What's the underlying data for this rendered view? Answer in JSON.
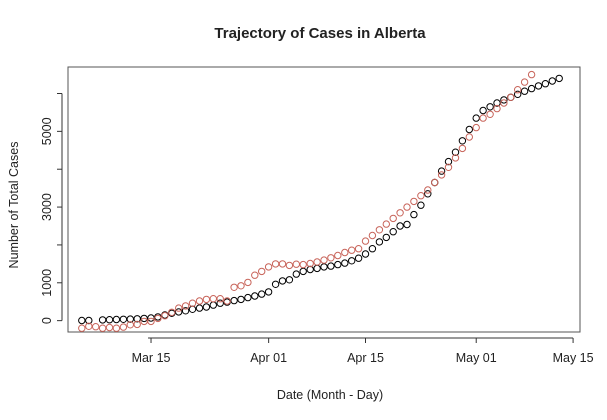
{
  "chart_data": {
    "type": "scatter",
    "title": "Trajectory of Cases in Alberta",
    "xlabel": "Date (Month - Day)",
    "ylabel": "Number of Total Cases",
    "x_ticks": [
      {
        "date": "2020-03-15",
        "label": "Mar 15"
      },
      {
        "date": "2020-04-01",
        "label": "Apr 01"
      },
      {
        "date": "2020-04-15",
        "label": "Apr 15"
      },
      {
        "date": "2020-05-01",
        "label": "May 01"
      },
      {
        "date": "2020-05-15",
        "label": "May 15"
      }
    ],
    "y_ticks": [
      0,
      1000,
      3000,
      5000
    ],
    "xlim": [
      "2020-03-03",
      "2020-05-16"
    ],
    "ylim": [
      -300,
      6700
    ],
    "grid": false,
    "series": [
      {
        "color": "#000000",
        "marker": "open-circle",
        "points": [
          [
            "2020-03-05",
            5
          ],
          [
            "2020-03-06",
            5
          ],
          [
            "2020-03-08",
            20
          ],
          [
            "2020-03-09",
            25
          ],
          [
            "2020-03-10",
            30
          ],
          [
            "2020-03-11",
            35
          ],
          [
            "2020-03-12",
            40
          ],
          [
            "2020-03-13",
            50
          ],
          [
            "2020-03-14",
            60
          ],
          [
            "2020-03-15",
            70
          ],
          [
            "2020-03-16",
            100
          ],
          [
            "2020-03-17",
            150
          ],
          [
            "2020-03-18",
            195
          ],
          [
            "2020-03-19",
            230
          ],
          [
            "2020-03-20",
            260
          ],
          [
            "2020-03-21",
            300
          ],
          [
            "2020-03-22",
            330
          ],
          [
            "2020-03-23",
            360
          ],
          [
            "2020-03-24",
            410
          ],
          [
            "2020-03-25",
            460
          ],
          [
            "2020-03-26",
            490
          ],
          [
            "2020-03-27",
            530
          ],
          [
            "2020-03-28",
            560
          ],
          [
            "2020-03-29",
            610
          ],
          [
            "2020-03-30",
            650
          ],
          [
            "2020-03-31",
            700
          ],
          [
            "2020-04-01",
            760
          ],
          [
            "2020-04-02",
            960
          ],
          [
            "2020-04-03",
            1050
          ],
          [
            "2020-04-04",
            1080
          ],
          [
            "2020-04-05",
            1230
          ],
          [
            "2020-04-06",
            1300
          ],
          [
            "2020-04-07",
            1350
          ],
          [
            "2020-04-08",
            1380
          ],
          [
            "2020-04-09",
            1420
          ],
          [
            "2020-04-10",
            1440
          ],
          [
            "2020-04-11",
            1480
          ],
          [
            "2020-04-12",
            1520
          ],
          [
            "2020-04-13",
            1580
          ],
          [
            "2020-04-14",
            1650
          ],
          [
            "2020-04-15",
            1760
          ],
          [
            "2020-04-16",
            1900
          ],
          [
            "2020-04-17",
            2080
          ],
          [
            "2020-04-18",
            2200
          ],
          [
            "2020-04-19",
            2350
          ],
          [
            "2020-04-20",
            2500
          ],
          [
            "2020-04-21",
            2540
          ],
          [
            "2020-04-22",
            2800
          ],
          [
            "2020-04-23",
            3050
          ],
          [
            "2020-04-24",
            3350
          ],
          [
            "2020-04-25",
            3650
          ],
          [
            "2020-04-26",
            3950
          ],
          [
            "2020-04-27",
            4200
          ],
          [
            "2020-04-28",
            4450
          ],
          [
            "2020-04-29",
            4750
          ],
          [
            "2020-04-30",
            5050
          ],
          [
            "2020-05-01",
            5350
          ],
          [
            "2020-05-02",
            5550
          ],
          [
            "2020-05-03",
            5650
          ],
          [
            "2020-05-04",
            5750
          ],
          [
            "2020-05-05",
            5830
          ],
          [
            "2020-05-06",
            5900
          ],
          [
            "2020-05-07",
            5980
          ],
          [
            "2020-05-08",
            6060
          ],
          [
            "2020-05-09",
            6130
          ],
          [
            "2020-05-10",
            6200
          ],
          [
            "2020-05-11",
            6260
          ],
          [
            "2020-05-12",
            6330
          ],
          [
            "2020-05-13",
            6400
          ]
        ]
      },
      {
        "color": "#c8645a",
        "marker": "open-circle",
        "points": [
          [
            "2020-03-05",
            -200
          ],
          [
            "2020-03-06",
            -150
          ],
          [
            "2020-03-07",
            -160
          ],
          [
            "2020-03-08",
            -200
          ],
          [
            "2020-03-09",
            -180
          ],
          [
            "2020-03-10",
            -200
          ],
          [
            "2020-03-11",
            -170
          ],
          [
            "2020-03-12",
            -110
          ],
          [
            "2020-03-13",
            -100
          ],
          [
            "2020-03-14",
            -20
          ],
          [
            "2020-03-15",
            -20
          ],
          [
            "2020-03-16",
            60
          ],
          [
            "2020-03-17",
            130
          ],
          [
            "2020-03-18",
            220
          ],
          [
            "2020-03-19",
            330
          ],
          [
            "2020-03-20",
            390
          ],
          [
            "2020-03-21",
            460
          ],
          [
            "2020-03-22",
            520
          ],
          [
            "2020-03-23",
            560
          ],
          [
            "2020-03-24",
            580
          ],
          [
            "2020-03-25",
            580
          ],
          [
            "2020-03-26",
            520
          ],
          [
            "2020-03-27",
            880
          ],
          [
            "2020-03-28",
            920
          ],
          [
            "2020-03-29",
            1010
          ],
          [
            "2020-03-30",
            1200
          ],
          [
            "2020-03-31",
            1300
          ],
          [
            "2020-04-01",
            1420
          ],
          [
            "2020-04-02",
            1500
          ],
          [
            "2020-04-03",
            1500
          ],
          [
            "2020-04-04",
            1460
          ],
          [
            "2020-04-05",
            1490
          ],
          [
            "2020-04-06",
            1480
          ],
          [
            "2020-04-07",
            1510
          ],
          [
            "2020-04-08",
            1550
          ],
          [
            "2020-04-09",
            1600
          ],
          [
            "2020-04-10",
            1660
          ],
          [
            "2020-04-11",
            1720
          ],
          [
            "2020-04-12",
            1800
          ],
          [
            "2020-04-13",
            1860
          ],
          [
            "2020-04-14",
            1900
          ],
          [
            "2020-04-15",
            2100
          ],
          [
            "2020-04-16",
            2250
          ],
          [
            "2020-04-17",
            2400
          ],
          [
            "2020-04-18",
            2550
          ],
          [
            "2020-04-19",
            2700
          ],
          [
            "2020-04-20",
            2850
          ],
          [
            "2020-04-21",
            3000
          ],
          [
            "2020-04-22",
            3150
          ],
          [
            "2020-04-23",
            3300
          ],
          [
            "2020-04-24",
            3450
          ],
          [
            "2020-04-25",
            3650
          ],
          [
            "2020-04-26",
            3850
          ],
          [
            "2020-04-27",
            4050
          ],
          [
            "2020-04-28",
            4300
          ],
          [
            "2020-04-29",
            4550
          ],
          [
            "2020-04-30",
            4850
          ],
          [
            "2020-05-01",
            5100
          ],
          [
            "2020-05-02",
            5350
          ],
          [
            "2020-05-03",
            5450
          ],
          [
            "2020-05-04",
            5600
          ],
          [
            "2020-05-05",
            5750
          ],
          [
            "2020-05-06",
            5900
          ],
          [
            "2020-05-07",
            6100
          ],
          [
            "2020-05-08",
            6300
          ],
          [
            "2020-05-09",
            6500
          ]
        ]
      }
    ]
  }
}
